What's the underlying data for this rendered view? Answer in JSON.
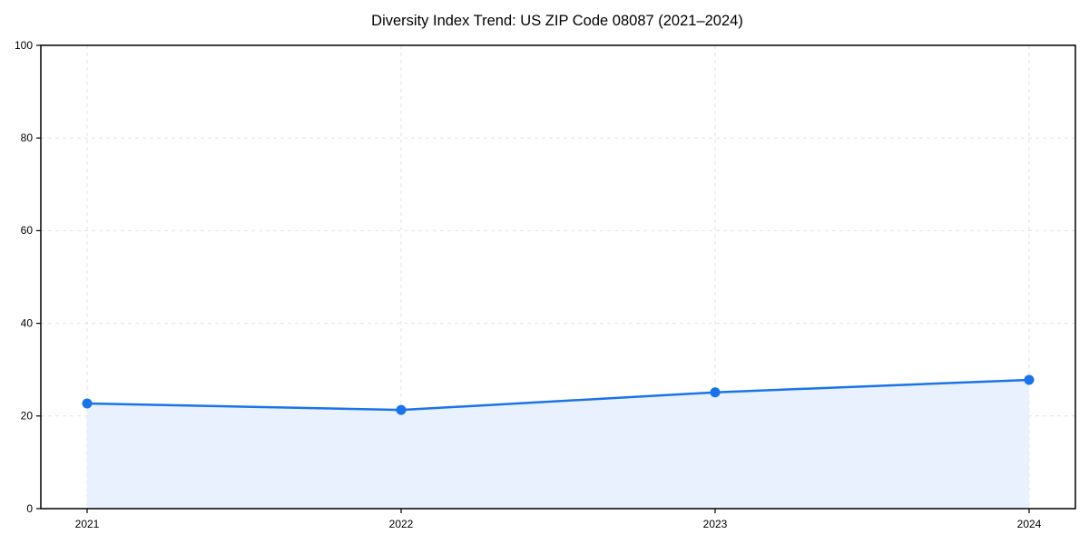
{
  "figure": {
    "title": "Diversity Index Trend: US ZIP Code 08087 (2021–2024)"
  },
  "chart_data": {
    "type": "area",
    "title": "Diversity Index Trend: US ZIP Code 08087 (2021–2024)",
    "x": [
      "2021",
      "2022",
      "2023",
      "2024"
    ],
    "series": [
      {
        "name": "Diversity Index",
        "values": [
          22.7,
          21.3,
          25.1,
          27.8
        ]
      }
    ],
    "xlabel": "",
    "ylabel": "",
    "ylim": [
      0,
      100
    ],
    "yticks": [
      0,
      20,
      40,
      60,
      80,
      100
    ],
    "xticks": [
      "2021",
      "2022",
      "2023",
      "2024"
    ],
    "grid": true,
    "grid_style": "dashed",
    "legend_position": "none",
    "colors": {
      "line": "#1a73e8",
      "marker": "#1a73e8",
      "fill": "#e8f1fd",
      "grid": "#e3e3e3",
      "axis": "#000000",
      "text": "#000000"
    }
  }
}
